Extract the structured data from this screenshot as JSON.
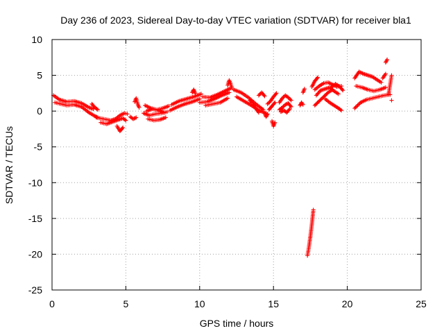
{
  "chart_data": {
    "type": "scatter",
    "title": "Day 236 of 2023, Sidereal Day-to-day VTEC variation (SDTVAR) for receiver bla1",
    "xlabel": "GPS time / hours",
    "ylabel": "SDTVAR / TECUs",
    "xlim": [
      0,
      25
    ],
    "ylim": [
      -25,
      10
    ],
    "x_ticks": [
      0,
      5,
      10,
      15,
      20,
      25
    ],
    "y_ticks": [
      -25,
      -20,
      -15,
      -10,
      -5,
      0,
      5,
      10
    ],
    "x_tick_labels": [
      "0",
      "5",
      "10",
      "15",
      "20",
      "25"
    ],
    "y_tick_labels": [
      "-25",
      "-20",
      "-15",
      "-10",
      "-5",
      "0",
      "5",
      "10"
    ],
    "grid": true,
    "marker": "+",
    "color": "#ff0000",
    "series": [
      {
        "name": "bla1",
        "segments": [
          {
            "x": [
              0.1,
              0.5,
              1.0,
              1.5,
              2.0,
              2.5,
              2.8
            ],
            "y": [
              2.2,
              1.6,
              1.3,
              1.4,
              1.1,
              0.5,
              0.3
            ]
          },
          {
            "x": [
              0.2,
              0.6,
              1.0,
              1.5,
              2.0,
              2.5,
              2.9,
              3.1
            ],
            "y": [
              1.2,
              1.0,
              0.8,
              0.9,
              0.6,
              -0.2,
              -0.7,
              -0.9
            ]
          },
          {
            "x": [
              2.7,
              2.9,
              3.1
            ],
            "y": [
              1.0,
              0.5,
              0.2
            ]
          },
          {
            "x": [
              3.0,
              3.5,
              4.0,
              4.3,
              4.6,
              4.9,
              5.1
            ],
            "y": [
              -0.9,
              -1.1,
              -1.3,
              -1.1,
              -0.6,
              -0.3,
              -0.4
            ]
          },
          {
            "x": [
              3.3,
              3.7,
              4.1,
              4.5,
              4.8,
              5.0
            ],
            "y": [
              -1.6,
              -1.8,
              -1.5,
              -1.2,
              -1.0,
              -1.3
            ]
          },
          {
            "x": [
              4.4,
              4.6,
              4.8
            ],
            "y": [
              -2.1,
              -2.8,
              -2.3
            ]
          },
          {
            "x": [
              5.6,
              5.7,
              5.8,
              5.9
            ],
            "y": [
              1.3,
              1.8,
              1.0,
              0.5
            ]
          },
          {
            "x": [
              5.3,
              5.5,
              5.7
            ],
            "y": [
              -0.8,
              -1.1,
              -0.9
            ]
          },
          {
            "x": [
              6.2,
              6.6,
              7.0,
              7.4,
              7.8
            ],
            "y": [
              -0.3,
              -0.6,
              -0.4,
              -0.3,
              -0.1
            ]
          },
          {
            "x": [
              6.3,
              6.7,
              7.1,
              7.5,
              7.9
            ],
            "y": [
              0.8,
              0.4,
              0.2,
              0.4,
              0.7
            ]
          },
          {
            "x": [
              6.5,
              6.9,
              7.3,
              7.7
            ],
            "y": [
              -1.1,
              -1.3,
              -1.2,
              -0.9
            ]
          },
          {
            "x": [
              6.4,
              6.8,
              7.2,
              7.6
            ],
            "y": [
              0.0,
              0.3,
              0.1,
              -0.2
            ]
          },
          {
            "x": [
              8.0,
              8.5,
              9.0,
              9.5,
              10.0
            ],
            "y": [
              0.1,
              0.6,
              1.0,
              1.3,
              1.7
            ]
          },
          {
            "x": [
              8.1,
              8.6,
              9.1,
              9.6,
              10.1
            ],
            "y": [
              0.9,
              1.4,
              1.7,
              2.0,
              2.4
            ]
          },
          {
            "x": [
              9.5,
              9.6,
              9.7
            ],
            "y": [
              2.6,
              3.0,
              2.5
            ]
          },
          {
            "x": [
              10.0,
              10.5,
              11.0,
              11.5,
              12.0
            ],
            "y": [
              1.2,
              1.3,
              1.7,
              2.2,
              2.6
            ]
          },
          {
            "x": [
              10.2,
              10.7,
              11.2,
              11.7,
              12.1
            ],
            "y": [
              2.0,
              1.9,
              2.3,
              2.8,
              3.2
            ]
          },
          {
            "x": [
              10.4,
              10.9,
              11.4,
              11.9
            ],
            "y": [
              0.8,
              1.0,
              1.2,
              1.8
            ]
          },
          {
            "x": [
              11.9,
              12.0,
              12.1,
              12.2
            ],
            "y": [
              3.6,
              4.3,
              3.8,
              3.2
            ]
          },
          {
            "x": [
              12.3,
              12.8,
              13.3,
              13.8,
              14.3
            ],
            "y": [
              3.0,
              2.6,
              1.9,
              1.0,
              0.2
            ]
          },
          {
            "x": [
              12.5,
              13.0,
              13.5,
              14.0,
              14.5
            ],
            "y": [
              2.0,
              1.4,
              0.8,
              0.1,
              -0.3
            ]
          },
          {
            "x": [
              13.4,
              13.6,
              13.8,
              14.0
            ],
            "y": [
              1.5,
              1.1,
              0.4,
              -0.2
            ]
          },
          {
            "x": [
              14.0,
              14.2,
              14.4
            ],
            "y": [
              2.2,
              2.6,
              2.1
            ]
          },
          {
            "x": [
              14.4,
              14.5,
              14.6
            ],
            "y": [
              -0.3,
              -0.8,
              -0.4
            ]
          },
          {
            "x": [
              14.6,
              14.8,
              15.0,
              15.2
            ],
            "y": [
              1.0,
              1.4,
              2.0,
              2.5
            ]
          },
          {
            "x": [
              14.7,
              14.9,
              15.1
            ],
            "y": [
              0.2,
              0.7,
              1.2
            ]
          },
          {
            "x": [
              14.9,
              15.0,
              15.1
            ],
            "y": [
              -1.4,
              -2.1,
              -1.6
            ]
          },
          {
            "x": [
              15.4,
              15.6,
              15.8,
              16.0,
              16.2
            ],
            "y": [
              1.2,
              1.8,
              2.2,
              1.9,
              1.5
            ]
          },
          {
            "x": [
              15.4,
              15.6,
              15.8,
              16.0,
              16.2
            ],
            "y": [
              0.2,
              0.5,
              0.9,
              1.1,
              0.6
            ]
          },
          {
            "x": [
              15.5,
              15.7,
              15.9,
              16.1
            ],
            "y": [
              -0.1,
              0.1,
              -0.2,
              0.3
            ]
          },
          {
            "x": [
              16.8,
              16.9,
              17.0
            ],
            "y": [
              0.8,
              1.2,
              0.9
            ]
          },
          {
            "x": [
              17.0,
              17.1
            ],
            "y": [
              2.6,
              3.1
            ]
          },
          {
            "x": [
              17.3,
              17.4,
              17.5,
              17.6,
              17.7
            ],
            "y": [
              -20.2,
              -19.0,
              -17.5,
              -15.8,
              -13.8
            ]
          },
          {
            "x": [
              17.6,
              17.8,
              18.0
            ],
            "y": [
              3.4,
              4.2,
              4.7
            ]
          },
          {
            "x": [
              17.8,
              18.1,
              18.4,
              18.7,
              19.0,
              19.3,
              19.6
            ],
            "y": [
              3.0,
              3.5,
              3.9,
              4.0,
              3.7,
              3.4,
              3.5
            ]
          },
          {
            "x": [
              17.8,
              18.1,
              18.4,
              18.7,
              19.0
            ],
            "y": [
              0.8,
              1.4,
              2.0,
              2.6,
              3.0
            ]
          },
          {
            "x": [
              17.9,
              18.2,
              18.5,
              18.8,
              19.1,
              19.4
            ],
            "y": [
              2.2,
              2.9,
              3.1,
              3.3,
              2.8,
              2.4
            ]
          },
          {
            "x": [
              18.5,
              18.8,
              19.1,
              19.4,
              19.6
            ],
            "y": [
              1.7,
              1.2,
              0.8,
              0.4,
              0.1
            ]
          },
          {
            "x": [
              18.9,
              19.2,
              19.5,
              19.7
            ],
            "y": [
              3.3,
              3.8,
              3.4,
              2.9
            ]
          },
          {
            "x": [
              20.5,
              20.8,
              21.1,
              21.4,
              21.7,
              22.0,
              22.3
            ],
            "y": [
              4.6,
              5.5,
              5.2,
              5.0,
              4.8,
              4.4,
              4.0
            ]
          },
          {
            "x": [
              20.6,
              21.0,
              21.4,
              21.8,
              22.2,
              22.6
            ],
            "y": [
              3.5,
              3.3,
              3.0,
              2.8,
              3.0,
              3.3
            ]
          },
          {
            "x": [
              20.5,
              20.9,
              21.3,
              21.7,
              22.1,
              22.5,
              22.9
            ],
            "y": [
              0.4,
              1.2,
              1.6,
              1.8,
              2.0,
              2.2,
              2.3
            ]
          },
          {
            "x": [
              22.4,
              22.6
            ],
            "y": [
              4.6,
              5.2
            ]
          },
          {
            "x": [
              22.6,
              22.7
            ],
            "y": [
              6.8,
              7.2
            ]
          },
          {
            "x": [
              22.8,
              23.0
            ],
            "y": [
              2.4,
              5.0
            ]
          },
          {
            "x": [
              23.0
            ],
            "y": [
              1.5
            ]
          }
        ]
      }
    ]
  }
}
